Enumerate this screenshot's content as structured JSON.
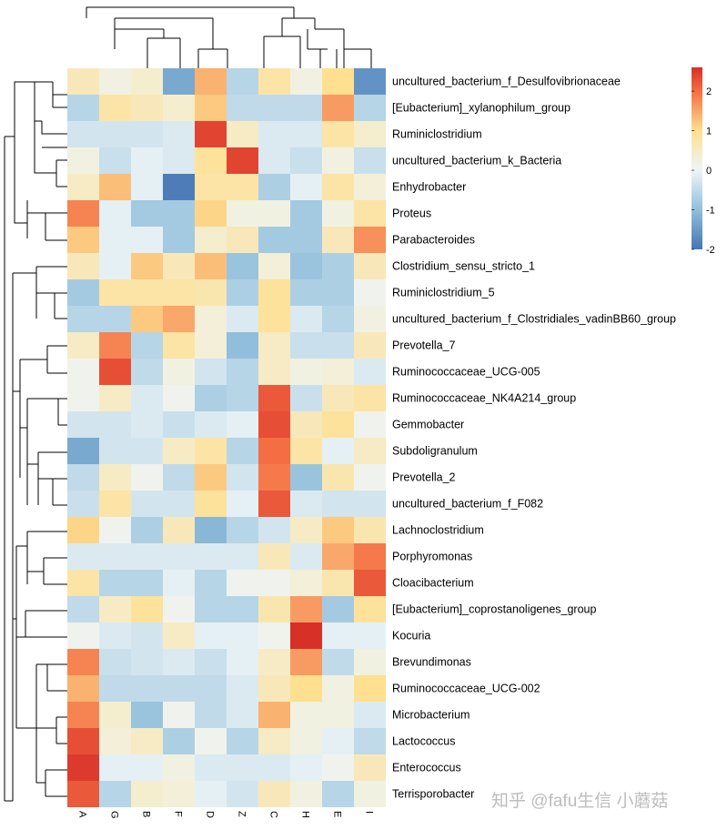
{
  "chart_data": {
    "type": "heatmap",
    "title": "",
    "columns": [
      "A",
      "G",
      "B",
      "F",
      "D",
      "Z",
      "C",
      "H",
      "E",
      "I"
    ],
    "rows": [
      "uncultured_bacterium_f_Desulfovibrionaceae",
      "[Eubacterium]_xylanophilum_group",
      "Ruminiclostridium",
      "uncultured_bacterium_k_Bacteria",
      "Enhydrobacter",
      "Proteus",
      "Parabacteroides",
      "Clostridium_sensu_stricto_1",
      "Ruminiclostridium_5",
      "uncultured_bacterium_f_Clostridiales_vadinBB60_group",
      "Prevotella_7",
      "Ruminococcaceae_UCG-005",
      "Ruminococcaceae_NK4A214_group",
      "Gemmobacter",
      "Subdoligranulum",
      "Prevotella_2",
      "uncultured_bacterium_f_F082",
      "Lachnoclostridium",
      "Porphyromonas",
      "Cloacibacterium",
      "[Eubacterium]_coprostanoligenes_group",
      "Kocuria",
      "Brevundimonas",
      "Ruminococcaceae_UCG-002",
      "Microbacterium",
      "Lactococcus",
      "Enterococcus",
      "Terrisporobacter"
    ],
    "values": [
      [
        0.6,
        0.2,
        0.4,
        -1.3,
        1.4,
        -0.6,
        0.8,
        0.2,
        1.0,
        -1.6
      ],
      [
        -0.6,
        0.8,
        0.6,
        0.4,
        1.2,
        -0.5,
        -0.5,
        -0.5,
        1.6,
        -0.6
      ],
      [
        -0.3,
        -0.3,
        -0.3,
        -0.2,
        2.4,
        0.5,
        -0.2,
        -0.2,
        0.8,
        0.4
      ],
      [
        0.2,
        -0.4,
        -0.1,
        -0.2,
        0.9,
        2.4,
        -0.2,
        -0.4,
        0.2,
        -0.4
      ],
      [
        0.5,
        1.3,
        -0.1,
        -1.9,
        0.8,
        0.8,
        -0.7,
        -0.1,
        0.8,
        0.3
      ],
      [
        1.8,
        -0.1,
        -0.8,
        -0.8,
        1.1,
        0.2,
        0.2,
        -0.8,
        0.2,
        0.8
      ],
      [
        1.2,
        -0.1,
        -0.1,
        -0.8,
        0.4,
        0.6,
        -0.8,
        -0.8,
        0.6,
        1.7
      ],
      [
        0.6,
        -0.1,
        1.2,
        0.6,
        1.3,
        -0.9,
        0.3,
        -0.9,
        -0.7,
        0.6
      ],
      [
        -0.8,
        0.8,
        0.8,
        0.8,
        0.7,
        -0.7,
        0.9,
        -0.7,
        -0.7,
        0.1
      ],
      [
        -0.6,
        -0.6,
        1.2,
        1.5,
        0.3,
        -0.2,
        0.9,
        -0.2,
        -0.6,
        0.2
      ],
      [
        0.5,
        1.8,
        -0.6,
        0.8,
        0.3,
        -1.0,
        0.5,
        -0.4,
        -0.4,
        0.6
      ],
      [
        0.1,
        2.3,
        -0.5,
        0.2,
        -0.3,
        -0.6,
        0.5,
        0.2,
        0.3,
        -0.2
      ],
      [
        0.1,
        0.5,
        -0.2,
        0.1,
        -0.7,
        -0.6,
        2.2,
        -0.4,
        0.6,
        0.8
      ],
      [
        -0.3,
        -0.3,
        -0.2,
        -0.4,
        -0.2,
        -0.1,
        2.3,
        0.6,
        0.9,
        0.1
      ],
      [
        -1.3,
        -0.3,
        -0.3,
        0.5,
        0.8,
        -0.6,
        2.0,
        0.8,
        -0.1,
        0.5
      ],
      [
        -0.5,
        0.5,
        0.1,
        -0.5,
        1.2,
        -0.3,
        1.9,
        -0.9,
        0.7,
        0.1
      ],
      [
        -0.4,
        0.8,
        -0.3,
        -0.3,
        0.9,
        -0.1,
        2.2,
        -0.2,
        -0.3,
        -0.3
      ],
      [
        1.1,
        0.1,
        -0.7,
        0.6,
        -1.1,
        -0.6,
        -0.3,
        0.5,
        1.2,
        0.7
      ],
      [
        -0.2,
        -0.2,
        -0.2,
        -0.2,
        -0.2,
        -0.2,
        0.6,
        -0.2,
        1.5,
        1.9
      ],
      [
        0.8,
        -0.6,
        -0.6,
        -0.1,
        -0.6,
        0.1,
        0.1,
        0.3,
        0.7,
        2.2
      ],
      [
        -0.5,
        0.5,
        0.9,
        0.1,
        -0.6,
        -0.6,
        0.7,
        1.6,
        -0.8,
        0.9
      ],
      [
        0.1,
        -0.2,
        -0.3,
        0.5,
        -0.1,
        -0.1,
        0.1,
        2.6,
        -0.1,
        -0.1
      ],
      [
        1.8,
        -0.4,
        -0.3,
        -0.2,
        -0.4,
        -0.1,
        0.5,
        1.6,
        -0.5,
        0.2
      ],
      [
        1.4,
        -0.5,
        -0.5,
        -0.5,
        -0.5,
        -0.2,
        0.6,
        1.0,
        0.2,
        1.0
      ],
      [
        1.8,
        0.4,
        -0.9,
        0.1,
        -0.5,
        -0.2,
        1.4,
        0.2,
        0.2,
        -0.2
      ],
      [
        2.3,
        0.3,
        0.5,
        -0.7,
        0.1,
        -0.6,
        0.5,
        0.2,
        -0.1,
        -0.5
      ],
      [
        2.5,
        -0.1,
        -0.1,
        0.2,
        -0.2,
        -0.2,
        -0.2,
        -0.1,
        0.1,
        0.6
      ],
      [
        2.2,
        -0.6,
        0.4,
        0.3,
        -0.1,
        -0.3,
        0.6,
        0.2,
        -0.6,
        0.2
      ]
    ],
    "color_scale": {
      "min": -2,
      "max": 2.6,
      "stops": [
        {
          "value": -2,
          "color": "#4575b4"
        },
        {
          "value": -1,
          "color": "#91bfdb"
        },
        {
          "value": 0,
          "color": "#eef5f7"
        },
        {
          "value": 1,
          "color": "#fee090"
        },
        {
          "value": 2,
          "color": "#f46d43"
        },
        {
          "value": 2.6,
          "color": "#d73027"
        }
      ],
      "legend_ticks": [
        "2",
        "1",
        "0",
        "-1",
        "-2"
      ]
    },
    "col_dendrogram": true,
    "row_dendrogram": true,
    "legend_position": "right"
  },
  "watermark": "知乎 @fafu生信 小蘑菇"
}
